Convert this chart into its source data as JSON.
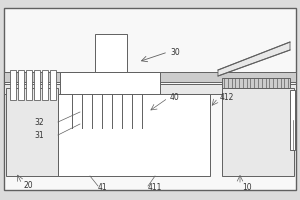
{
  "bg_color": "#f0f0f0",
  "line_color": "#606060",
  "fig_bg": "#dcdcdc",
  "panel_bg": "#f8f8f8",
  "gray_fill": "#cccccc",
  "light_gray": "#e8e8e8"
}
